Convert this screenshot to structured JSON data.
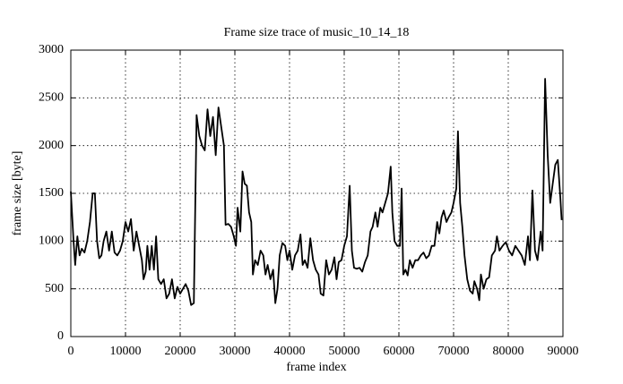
{
  "chart_data": {
    "type": "line",
    "title": "Frame size trace of music_10_14_18",
    "xlabel": "frame index",
    "ylabel": "frame size [byte]",
    "xlim": [
      0,
      90000
    ],
    "xticks": [
      0,
      10000,
      20000,
      30000,
      40000,
      50000,
      60000,
      70000,
      80000,
      90000
    ],
    "ylim": [
      0,
      3000
    ],
    "yticks": [
      0,
      500,
      1000,
      1500,
      2000,
      2500,
      3000
    ],
    "grid": true,
    "series": [
      {
        "color": "#000000",
        "x": [
          0,
          500,
          800,
          1200,
          1600,
          2000,
          2500,
          3000,
          3500,
          4000,
          4400,
          4800,
          5200,
          5600,
          6000,
          6500,
          7000,
          7500,
          8000,
          8500,
          9000,
          9500,
          10000,
          10500,
          11000,
          11500,
          12000,
          12500,
          13000,
          13300,
          13700,
          14000,
          14400,
          14800,
          15200,
          15600,
          16000,
          16500,
          17000,
          17500,
          18000,
          18500,
          19000,
          19500,
          20000,
          20500,
          21000,
          21500,
          22000,
          22500,
          23000,
          23500,
          24000,
          24500,
          25000,
          25500,
          26000,
          26500,
          27000,
          27500,
          28000,
          28300,
          28800,
          29300,
          29800,
          30200,
          30500,
          31000,
          31400,
          31800,
          32200,
          32600,
          33000,
          33300,
          33700,
          34200,
          34700,
          35200,
          35600,
          36000,
          36500,
          37000,
          37400,
          37800,
          38200,
          38700,
          39200,
          39600,
          40000,
          40500,
          41000,
          41500,
          42000,
          42400,
          42800,
          43300,
          43800,
          44300,
          44800,
          45300,
          45700,
          46200,
          46700,
          47200,
          47700,
          48200,
          48600,
          49000,
          49500,
          50000,
          50500,
          51000,
          51400,
          51800,
          52300,
          52800,
          53300,
          53800,
          54300,
          54800,
          55200,
          55700,
          56100,
          56600,
          57000,
          57500,
          58000,
          58500,
          58800,
          59200,
          59700,
          60200,
          60500,
          60800,
          61200,
          61600,
          62000,
          62500,
          63000,
          63500,
          64000,
          64500,
          65000,
          65500,
          66000,
          66500,
          67000,
          67400,
          67800,
          68200,
          68700,
          69100,
          69600,
          70000,
          70500,
          70800,
          71200,
          71600,
          72000,
          72500,
          73000,
          73500,
          73800,
          74300,
          74700,
          75000,
          75500,
          76000,
          76500,
          77000,
          77580,
          77930,
          78390,
          78970,
          79550,
          80130,
          80710,
          81290,
          81870,
          82450,
          83030,
          83610,
          83960,
          84420,
          84890,
          85350,
          85930,
          86280,
          86740,
          87210,
          87670,
          88130,
          88600,
          89060,
          89530,
          89760
        ],
        "values": [
          1520,
          1000,
          750,
          1050,
          850,
          920,
          880,
          1000,
          1200,
          1500,
          1500,
          1000,
          820,
          850,
          1000,
          1100,
          900,
          1100,
          880,
          850,
          900,
          1000,
          1200,
          1100,
          1230,
          900,
          1100,
          950,
          800,
          600,
          680,
          950,
          700,
          950,
          700,
          1050,
          600,
          550,
          600,
          400,
          450,
          600,
          400,
          520,
          450,
          500,
          550,
          480,
          330,
          350,
          2320,
          2100,
          2000,
          1950,
          2380,
          2100,
          2300,
          1900,
          2400,
          2200,
          2000,
          1170,
          1180,
          1150,
          1050,
          950,
          1350,
          1100,
          1730,
          1600,
          1580,
          1300,
          1200,
          650,
          800,
          750,
          900,
          850,
          650,
          750,
          600,
          700,
          350,
          500,
          850,
          980,
          950,
          800,
          900,
          700,
          850,
          900,
          1070,
          750,
          800,
          720,
          1030,
          800,
          700,
          650,
          450,
          430,
          800,
          650,
          700,
          830,
          600,
          780,
          800,
          950,
          1050,
          1580,
          900,
          720,
          710,
          720,
          680,
          780,
          850,
          1100,
          1150,
          1300,
          1150,
          1350,
          1300,
          1400,
          1500,
          1780,
          1300,
          1000,
          950,
          950,
          1550,
          650,
          700,
          640,
          800,
          720,
          800,
          800,
          850,
          880,
          820,
          850,
          950,
          950,
          1200,
          1080,
          1250,
          1320,
          1200,
          1250,
          1300,
          1400,
          1550,
          2150,
          1400,
          1150,
          850,
          600,
          480,
          450,
          580,
          500,
          380,
          650,
          500,
          600,
          620,
          850,
          900,
          1050,
          900,
          950,
          990,
          900,
          850,
          950,
          900,
          850,
          750,
          1050,
          800,
          1530,
          900,
          800,
          1100,
          900,
          2700,
          1900,
          1400,
          1600,
          1800,
          1850,
          1450,
          1220
        ]
      }
    ]
  }
}
